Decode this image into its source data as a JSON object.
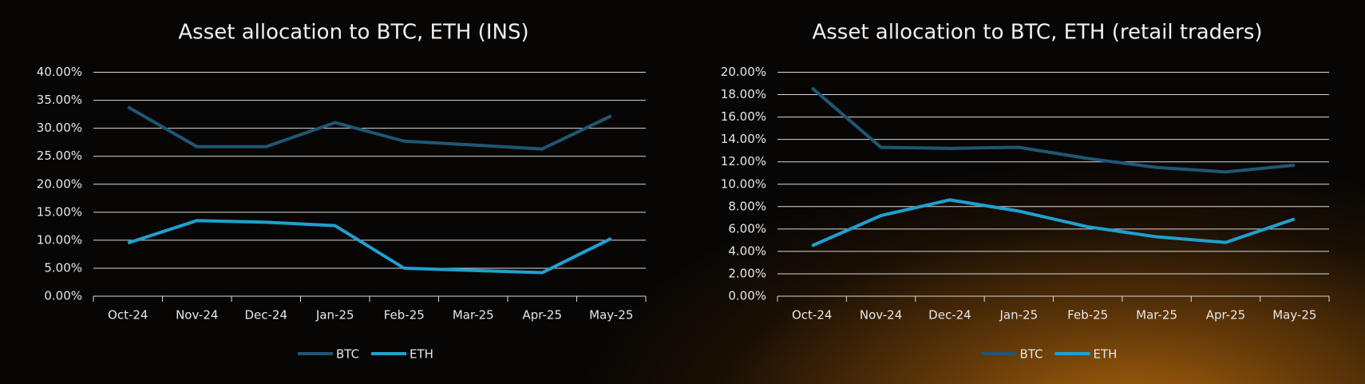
{
  "chart_data": [
    {
      "type": "line",
      "title": "Asset allocation to BTC, ETH (INS)",
      "categories": [
        "Oct-24",
        "Nov-24",
        "Dec-24",
        "Jan-25",
        "Feb-25",
        "Mar-25",
        "Apr-25",
        "May-25"
      ],
      "series": [
        {
          "name": "BTC",
          "color": "#1f5676",
          "values": [
            33.8,
            26.7,
            26.7,
            31,
            27.7,
            27,
            26.3,
            32.2
          ]
        },
        {
          "name": "ETH",
          "color": "#1fa0d0",
          "values": [
            9.5,
            13.5,
            13.2,
            12.6,
            5,
            4.6,
            4.2,
            10.3
          ]
        }
      ],
      "ylim": [
        0,
        40
      ],
      "yticks": [
        {
          "value": 0,
          "label": "0.00%"
        },
        {
          "value": 5,
          "label": "5.00%"
        },
        {
          "value": 10,
          "label": "10.00%"
        },
        {
          "value": 15,
          "label": "15.00%"
        },
        {
          "value": 20,
          "label": "20.00%"
        },
        {
          "value": 25,
          "label": "25.00%"
        },
        {
          "value": 30,
          "label": "30.00%"
        },
        {
          "value": 35,
          "label": "35.00%"
        },
        {
          "value": 40,
          "label": "40.00%"
        }
      ],
      "grid": true,
      "legend": "bottom"
    },
    {
      "type": "line",
      "title": "Asset allocation to BTC, ETH (retail traders)",
      "categories": [
        "Oct-24",
        "Nov-24",
        "Dec-24",
        "Jan-25",
        "Feb-25",
        "Mar-25",
        "Apr-25",
        "May-25"
      ],
      "series": [
        {
          "name": "BTC",
          "color": "#1f5676",
          "values": [
            18.6,
            13.3,
            13.2,
            13.3,
            12.3,
            11.5,
            11.1,
            11.7
          ]
        },
        {
          "name": "ETH",
          "color": "#1fa0d0",
          "values": [
            4.5,
            7.2,
            8.6,
            7.6,
            6.2,
            5.3,
            4.8,
            6.9
          ]
        }
      ],
      "ylim": [
        0,
        20
      ],
      "yticks": [
        {
          "value": 0,
          "label": "0.00%"
        },
        {
          "value": 2,
          "label": "2.00%"
        },
        {
          "value": 4,
          "label": "4.00%"
        },
        {
          "value": 6,
          "label": "6.00%"
        },
        {
          "value": 8,
          "label": "8.00%"
        },
        {
          "value": 10,
          "label": "10.00%"
        },
        {
          "value": 12,
          "label": "12.00%"
        },
        {
          "value": 14,
          "label": "14.00%"
        },
        {
          "value": 16,
          "label": "16.00%"
        },
        {
          "value": 18,
          "label": "18.00%"
        },
        {
          "value": 20,
          "label": "20.00%"
        }
      ],
      "grid": true,
      "legend": "bottom"
    }
  ]
}
